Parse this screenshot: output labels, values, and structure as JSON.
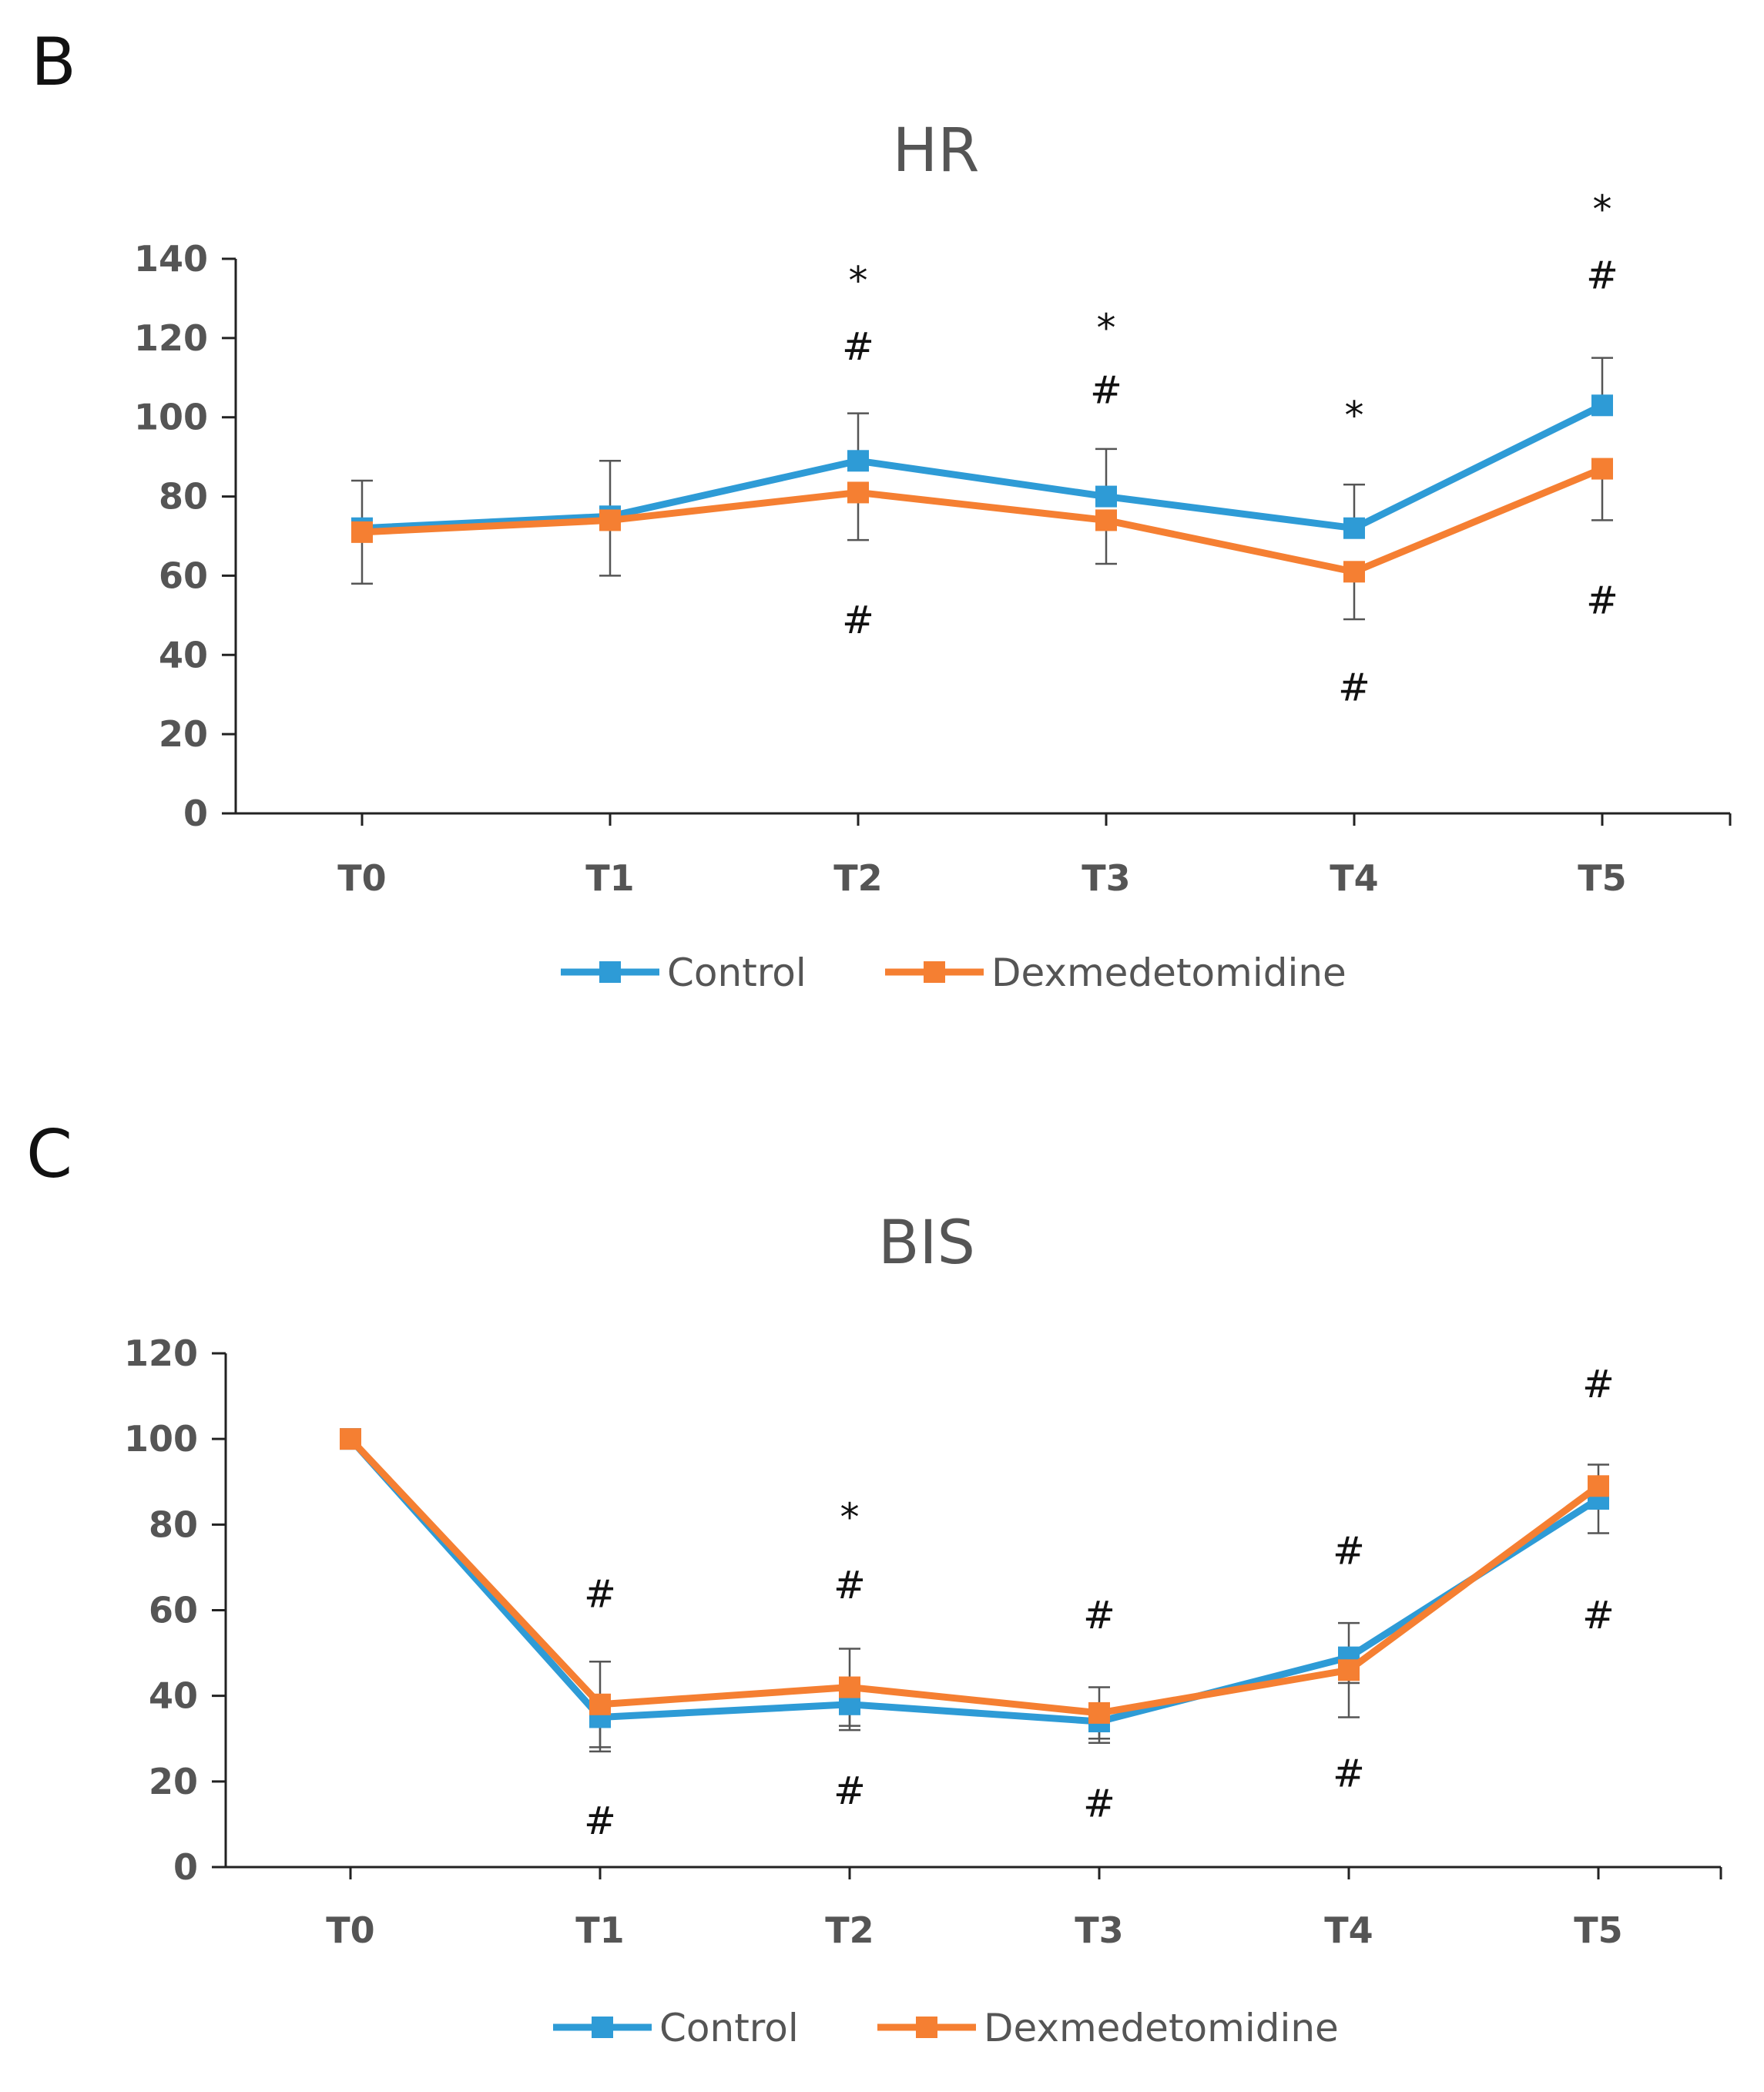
{
  "chart_data": [
    {
      "type": "line",
      "panel_label": "B",
      "title": "HR",
      "xlabel": "",
      "ylabel": "",
      "categories": [
        "T0",
        "T1",
        "T2",
        "T3",
        "T4",
        "T5"
      ],
      "ylim": [
        0,
        140
      ],
      "yticks": [
        0,
        20,
        40,
        60,
        80,
        100,
        120,
        140
      ],
      "grid": false,
      "legend": "bottom",
      "series": [
        {
          "name": "Control",
          "color": "#2E9BD6",
          "values": [
            72,
            75,
            89,
            80,
            72,
            103
          ],
          "error": [
            12,
            14,
            12,
            12,
            11,
            12
          ],
          "error_side": "upper"
        },
        {
          "name": "Dexmedetomidine",
          "color": "#F57F32",
          "values": [
            71,
            74,
            81,
            74,
            61,
            87
          ],
          "error": [
            13,
            14,
            12,
            11,
            12,
            13
          ],
          "error_side": "lower"
        }
      ],
      "annotations": [
        {
          "category": "T2",
          "text": "*",
          "y": 137
        },
        {
          "category": "T2",
          "text": "#",
          "y": 118
        },
        {
          "category": "T2",
          "text": "#",
          "y": 49
        },
        {
          "category": "T3",
          "text": "*",
          "y": 125
        },
        {
          "category": "T3",
          "text": "#",
          "y": 107
        },
        {
          "category": "T4",
          "text": "*",
          "y": 103
        },
        {
          "category": "T4",
          "text": "#",
          "y": 32
        },
        {
          "category": "T5",
          "text": "*",
          "y": 155
        },
        {
          "category": "T5",
          "text": "#",
          "y": 136
        },
        {
          "category": "T5",
          "text": "#",
          "y": 54
        }
      ]
    },
    {
      "type": "line",
      "panel_label": "C",
      "title": "BIS",
      "xlabel": "",
      "ylabel": "",
      "categories": [
        "T0",
        "T1",
        "T2",
        "T3",
        "T4",
        "T5"
      ],
      "ylim": [
        0,
        120
      ],
      "yticks": [
        0,
        20,
        40,
        60,
        80,
        100,
        120
      ],
      "grid": false,
      "legend": "bottom",
      "series": [
        {
          "name": "Control",
          "color": "#2E9BD6",
          "values": [
            100,
            35,
            38,
            34,
            49,
            86
          ],
          "error": [
            0,
            8,
            6,
            5,
            6,
            8
          ],
          "error_side": "lower"
        },
        {
          "name": "Dexmedetomidine",
          "color": "#F57F32",
          "values": [
            100,
            38,
            42,
            36,
            46,
            89
          ],
          "error": [
            0,
            10,
            9,
            6,
            11,
            5
          ],
          "error_side": "both"
        }
      ],
      "annotations": [
        {
          "category": "T1",
          "text": "#",
          "y": 64
        },
        {
          "category": "T1",
          "text": "#",
          "y": 11
        },
        {
          "category": "T2",
          "text": "*",
          "y": 84
        },
        {
          "category": "T2",
          "text": "#",
          "y": 66
        },
        {
          "category": "T2",
          "text": "#",
          "y": 18
        },
        {
          "category": "T3",
          "text": "#",
          "y": 59
        },
        {
          "category": "T3",
          "text": "#",
          "y": 15
        },
        {
          "category": "T4",
          "text": "#",
          "y": 74
        },
        {
          "category": "T4",
          "text": "#",
          "y": 22
        },
        {
          "category": "T5",
          "text": "#",
          "y": 113
        },
        {
          "category": "T5",
          "text": "#",
          "y": 59
        }
      ]
    }
  ]
}
